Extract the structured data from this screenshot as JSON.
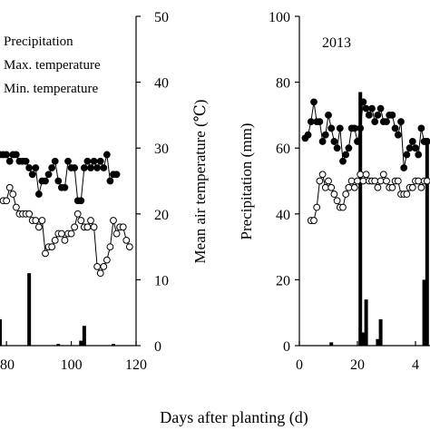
{
  "chart_data": [
    {
      "panel": "left",
      "type": "bar+line",
      "legend": [
        "Precipitation",
        "Max. temperature",
        "Min. temperature"
      ],
      "x_ticks": [
        "80",
        "100",
        "120"
      ],
      "x_range": [
        78,
        120
      ],
      "y_right_label": "Mean air temperature (℃)",
      "y_right_ticks": [
        "0",
        "10",
        "20",
        "30",
        "40",
        "50"
      ],
      "y_right_range": [
        0,
        50
      ],
      "y_left_range_for_precip": [
        0,
        100
      ],
      "series": [
        {
          "name": "Max. temperature",
          "marker": "filled-circle",
          "x": [
            78,
            79,
            80,
            81,
            82,
            83,
            84,
            85,
            86,
            87,
            88,
            89,
            90,
            91,
            92,
            93,
            94,
            95,
            96,
            97,
            98,
            99,
            100,
            101,
            102,
            103,
            104,
            105,
            106,
            107,
            108,
            109,
            110,
            111,
            112,
            113,
            114
          ],
          "y": [
            29,
            29,
            29,
            28,
            29,
            29,
            28,
            28,
            28,
            27,
            26,
            27,
            23,
            25,
            25,
            26,
            27,
            28,
            25,
            24,
            24,
            28,
            27,
            27,
            22,
            22,
            27,
            28,
            27,
            28,
            27,
            28,
            27,
            29,
            25,
            26,
            26
          ]
        },
        {
          "name": "Min. temperature",
          "marker": "open-circle",
          "x": [
            79,
            80,
            81,
            82,
            83,
            84,
            85,
            86,
            87,
            88,
            89,
            90,
            91,
            92,
            93,
            94,
            95,
            96,
            97,
            98,
            99,
            100,
            101,
            102,
            103,
            104,
            105,
            106,
            107,
            108,
            109,
            110,
            111,
            112,
            113,
            114,
            115,
            116,
            117,
            118
          ],
          "y": [
            22,
            22,
            24,
            23,
            21,
            20,
            20,
            20,
            20,
            19,
            19,
            18,
            19,
            14,
            15,
            15,
            16,
            17,
            17,
            16,
            17,
            17,
            18,
            20,
            19,
            18,
            18,
            19,
            18,
            12,
            11,
            12,
            13,
            15,
            19,
            17,
            18,
            18,
            16,
            15
          ]
        },
        {
          "name": "Precipitation",
          "bar_x": [
            78,
            87,
            96,
            103,
            104,
            113
          ],
          "bar_y_mm": [
            8,
            22,
            0.5,
            1.5,
            6,
            0.5
          ]
        }
      ]
    },
    {
      "panel": "right",
      "type": "bar+line",
      "title": "2013",
      "y_left_label": "Precipitation (mm)",
      "y_left_ticks": [
        "0",
        "20",
        "40",
        "60",
        "80",
        "100"
      ],
      "y_left_range": [
        0,
        100
      ],
      "x_ticks": [
        "0",
        "20",
        "4"
      ],
      "x_range": [
        0,
        45
      ],
      "temperature_scale": [
        0,
        50
      ],
      "series": [
        {
          "name": "Max. temperature",
          "marker": "filled-circle",
          "x": [
            2,
            3,
            4,
            5,
            6,
            7,
            8,
            9,
            10,
            11,
            12,
            13,
            14,
            15,
            16,
            17,
            18,
            19,
            20,
            21,
            22,
            23,
            24,
            25,
            26,
            27,
            28,
            29,
            30,
            31,
            32,
            33,
            34,
            35,
            36,
            37,
            38,
            39,
            40,
            41,
            42,
            43,
            44
          ],
          "y": [
            31.5,
            32,
            34,
            37,
            34,
            34,
            31,
            32,
            35,
            33,
            31,
            30,
            33,
            28,
            29,
            30,
            33,
            33,
            31,
            33,
            37,
            36,
            35,
            36,
            34,
            35,
            36,
            34,
            34,
            35,
            35,
            33,
            32,
            34,
            27,
            29,
            30,
            31,
            30,
            29,
            33,
            31,
            31
          ]
        },
        {
          "name": "Min. temperature",
          "marker": "open-circle",
          "x": [
            4,
            5,
            6,
            7,
            8,
            9,
            10,
            11,
            12,
            13,
            14,
            15,
            16,
            17,
            18,
            19,
            20,
            21,
            22,
            23,
            24,
            25,
            26,
            27,
            28,
            29,
            30,
            31,
            32,
            33,
            34,
            35,
            36,
            37,
            38,
            39,
            40,
            41,
            42,
            43,
            44
          ],
          "y": [
            19,
            19,
            21,
            25,
            26,
            24,
            25,
            24,
            23,
            22,
            21,
            21,
            23,
            24,
            25,
            24,
            25,
            26,
            25,
            26,
            25,
            25,
            25,
            24,
            25,
            26,
            25,
            24,
            24,
            25,
            25,
            23,
            23,
            23,
            24,
            24,
            25,
            25,
            24,
            25,
            25
          ]
        },
        {
          "name": "Precipitation",
          "bar_x": [
            11,
            21,
            22,
            23,
            27,
            28,
            43,
            44
          ],
          "bar_y_mm": [
            1,
            77,
            4,
            14,
            2,
            8,
            20,
            63
          ]
        }
      ]
    }
  ],
  "shared_xlabel": "Days after planting (d)"
}
